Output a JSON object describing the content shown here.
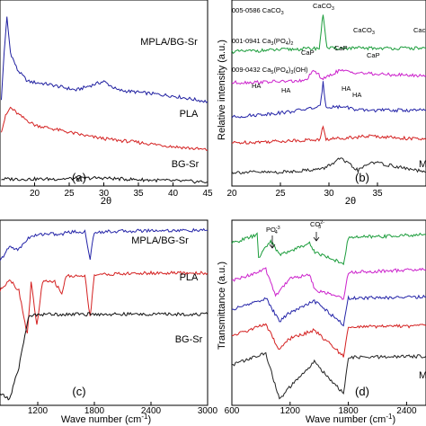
{
  "chart_data": [
    {
      "panel": "(a)",
      "type": "line",
      "xlabel": "2θ",
      "ylabel": "",
      "xlim": [
        15,
        45
      ],
      "xticks": [
        "20",
        "25",
        "30",
        "35",
        "40",
        "45"
      ],
      "series": [
        {
          "name": "MPLA/BG-Sr",
          "color": "#1f1fa0",
          "values": [
            [
              15.2,
              1.5
            ],
            [
              15.6,
              2.3
            ],
            [
              16,
              2.9
            ],
            [
              16.5,
              2.3
            ],
            [
              17.5,
              2.0
            ],
            [
              19,
              1.8
            ],
            [
              22,
              1.75
            ],
            [
              26,
              1.65
            ],
            [
              30,
              1.8
            ],
            [
              32,
              1.65
            ],
            [
              36,
              1.6
            ],
            [
              40,
              1.55
            ],
            [
              45,
              1.45
            ]
          ]
        },
        {
          "name": "PLA",
          "color": "#d42020",
          "values": [
            [
              15.2,
              0.95
            ],
            [
              15.8,
              1.2
            ],
            [
              16.5,
              1.35
            ],
            [
              18,
              1.2
            ],
            [
              20,
              1.05
            ],
            [
              24,
              0.95
            ],
            [
              28,
              0.85
            ],
            [
              31,
              0.8
            ],
            [
              35,
              0.75
            ],
            [
              40,
              0.68
            ],
            [
              45,
              0.62
            ]
          ]
        },
        {
          "name": "BG-Sr",
          "color": "#111111",
          "values": [
            [
              15.2,
              0.12
            ],
            [
              18,
              0.12
            ],
            [
              22,
              0.12
            ],
            [
              26,
              0.13
            ],
            [
              30,
              0.14
            ],
            [
              31,
              0.13
            ],
            [
              35,
              0.11
            ],
            [
              40,
              0.09
            ],
            [
              45,
              0.07
            ]
          ]
        }
      ]
    },
    {
      "panel": "(b)",
      "type": "line",
      "xlabel": "2θ",
      "ylabel": "Relative intensity (a.u.)",
      "xlim": [
        20,
        40
      ],
      "xticks": [
        "20",
        "25",
        "30",
        "35"
      ],
      "annotations": {
        "ref1": "005-0586 CaCO",
        "ref1_sub": "3",
        "ref2": "001-0941 Ca",
        "ref2_sub1": "3",
        "ref2_mid": "(PO",
        "ref2_sub2": "4",
        "ref2_end": ")",
        "ref2_sub3": "2",
        "ref3": "009-0432 Ca",
        "ref3_sub1": "5",
        "ref3_mid": "(PO",
        "ref3_sub2": "4",
        "ref3_end": ")",
        "ref3_sub3": "3",
        "ref3_tail": "(OH)",
        "peak_caco3_a": "CaCO",
        "peak_caco3_b": "CaCO",
        "peak_caco3_c": "Cac",
        "peak_sub": "3",
        "peak_cap_1": "CaP",
        "peak_cap_2": "CaP",
        "peak_cap_3": "CaP",
        "peak_ha_1": "HA",
        "peak_ha_2": "HA",
        "peak_ha_3": "HA",
        "peak_ha_4": "HA",
        "edge_label": "M"
      },
      "series": [
        {
          "name": "005-0586 CaCO3",
          "color": "#1a9c3a",
          "values": [
            [
              20,
              5.5
            ],
            [
              29,
              5.6
            ],
            [
              29.4,
              6.6
            ],
            [
              29.8,
              5.6
            ],
            [
              36,
              5.6
            ],
            [
              40,
              5.6
            ]
          ]
        },
        {
          "name": "001-0941 Ca3(PO4)2",
          "color": "#cc22cc",
          "values": [
            [
              20,
              4.6
            ],
            [
              27.5,
              4.65
            ],
            [
              28.5,
              4.95
            ],
            [
              29.4,
              4.7
            ],
            [
              31,
              4.95
            ],
            [
              34.5,
              4.85
            ],
            [
              40,
              4.8
            ]
          ]
        },
        {
          "name": "009-0432 Ca5(PO4)3(OH)",
          "color": "#2424a8",
          "values": [
            [
              20,
              3.6
            ],
            [
              25.8,
              3.75
            ],
            [
              29.1,
              3.9
            ],
            [
              29.4,
              4.6
            ],
            [
              29.7,
              3.9
            ],
            [
              31.8,
              3.9
            ],
            [
              32.9,
              3.8
            ],
            [
              40,
              3.8
            ]
          ]
        },
        {
          "name": "",
          "color": "#d42020",
          "values": [
            [
              20,
              2.85
            ],
            [
              29.1,
              2.95
            ],
            [
              29.4,
              3.35
            ],
            [
              29.7,
              2.95
            ],
            [
              31.5,
              3.0
            ],
            [
              34.4,
              3.05
            ],
            [
              40,
              2.95
            ]
          ]
        },
        {
          "name": "",
          "color": "#222222",
          "values": [
            [
              20,
              2.0
            ],
            [
              25,
              2.0
            ],
            [
              29.4,
              2.1
            ],
            [
              31.2,
              2.4
            ],
            [
              33,
              2.05
            ],
            [
              34.4,
              2.3
            ],
            [
              40,
              2.0
            ]
          ]
        }
      ]
    },
    {
      "panel": "(c)",
      "type": "line",
      "xlabel": "Wave number (cm",
      "xlabel_sup": "-1",
      "xlabel_end": ")",
      "ylabel": "",
      "xlim": [
        800,
        3000
      ],
      "xticks": [
        "1200",
        "1800",
        "2400",
        "3000"
      ],
      "series": [
        {
          "name": "MPLA/BG-Sr",
          "color": "#2424a8",
          "values": [
            [
              800,
              4.9
            ],
            [
              900,
              5.4
            ],
            [
              1000,
              5.3
            ],
            [
              1100,
              5.7
            ],
            [
              1200,
              5.8
            ],
            [
              1300,
              5.85
            ],
            [
              1455,
              5.8
            ],
            [
              1500,
              5.9
            ],
            [
              1700,
              5.9
            ],
            [
              1755,
              5.0
            ],
            [
              1800,
              5.9
            ],
            [
              2400,
              5.95
            ],
            [
              3000,
              5.95
            ]
          ]
        },
        {
          "name": "PLA",
          "color": "#d42020",
          "values": [
            [
              800,
              3.9
            ],
            [
              900,
              4.3
            ],
            [
              1000,
              3.9
            ],
            [
              1090,
              2.4
            ],
            [
              1130,
              4.2
            ],
            [
              1190,
              2.7
            ],
            [
              1250,
              4.2
            ],
            [
              1380,
              4.2
            ],
            [
              1455,
              3.8
            ],
            [
              1500,
              4.4
            ],
            [
              1700,
              4.4
            ],
            [
              1755,
              3.0
            ],
            [
              1800,
              4.45
            ],
            [
              2400,
              4.5
            ],
            [
              3000,
              4.5
            ]
          ]
        },
        {
          "name": "BG-Sr",
          "color": "#111111",
          "values": [
            [
              800,
              0.4
            ],
            [
              900,
              0.2
            ],
            [
              1000,
              1.3
            ],
            [
              1100,
              3.0
            ],
            [
              1200,
              3.1
            ],
            [
              1400,
              3.1
            ],
            [
              1800,
              3.1
            ],
            [
              3000,
              3.1
            ]
          ]
        }
      ]
    },
    {
      "panel": "(d)",
      "type": "line",
      "xlabel": "Wave number (cm",
      "xlabel_sup": "-1",
      "xlabel_end": ")",
      "ylabel": "Transmittance (a.u.)",
      "xlim": [
        600,
        2600
      ],
      "xticks": [
        "600",
        "1200",
        "1800",
        "2400"
      ],
      "annotations": {
        "po4": "PO",
        "po4_sup": "-3",
        "po4_sub": "4",
        "co3": "CO",
        "co3_sup": "2-",
        "co3_sub": "3",
        "edge_label": "M"
      },
      "series": [
        {
          "name": "",
          "color": "#1a9c3a",
          "values": [
            [
              600,
              5.6
            ],
            [
              860,
              5.9
            ],
            [
              875,
              5.1
            ],
            [
              1000,
              5.7
            ],
            [
              1090,
              5.2
            ],
            [
              1400,
              5.6
            ],
            [
              1455,
              5.3
            ],
            [
              1750,
              4.9
            ],
            [
              1800,
              5.8
            ],
            [
              2600,
              5.9
            ]
          ]
        },
        {
          "name": "",
          "color": "#cc22cc",
          "values": [
            [
              600,
              4.3
            ],
            [
              950,
              4.7
            ],
            [
              1050,
              3.8
            ],
            [
              1200,
              4.4
            ],
            [
              1400,
              4.5
            ],
            [
              1455,
              4.0
            ],
            [
              1750,
              3.7
            ],
            [
              1800,
              4.6
            ],
            [
              2600,
              4.7
            ]
          ]
        },
        {
          "name": "",
          "color": "#2424a8",
          "values": [
            [
              600,
              3.3
            ],
            [
              950,
              3.7
            ],
            [
              1090,
              2.9
            ],
            [
              1190,
              3.2
            ],
            [
              1450,
              3.6
            ],
            [
              1750,
              2.8
            ],
            [
              1800,
              3.7
            ],
            [
              2600,
              3.75
            ]
          ]
        },
        {
          "name": "",
          "color": "#d42020",
          "values": [
            [
              600,
              2.4
            ],
            [
              950,
              2.8
            ],
            [
              1090,
              1.9
            ],
            [
              1190,
              2.3
            ],
            [
              1450,
              2.6
            ],
            [
              1750,
              1.7
            ],
            [
              1800,
              2.7
            ],
            [
              2600,
              2.75
            ]
          ]
        },
        {
          "name": "",
          "color": "#222222",
          "values": [
            [
              600,
              1.4
            ],
            [
              950,
              1.8
            ],
            [
              1090,
              0.2
            ],
            [
              1190,
              0.6
            ],
            [
              1450,
              1.5
            ],
            [
              1750,
              0.4
            ],
            [
              1800,
              1.65
            ],
            [
              2600,
              1.7
            ]
          ]
        }
      ]
    }
  ]
}
